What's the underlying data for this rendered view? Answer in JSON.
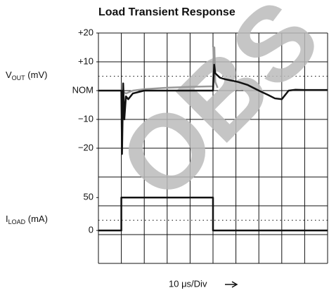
{
  "chart_data": {
    "type": "line",
    "title": "Load Transient Response",
    "watermark": "OBS",
    "y_label": [
      "V",
      "OUT",
      " (mV)"
    ],
    "y2_label": [
      "I",
      "LOAD",
      " (mA)"
    ],
    "x_label": "10 μs/Div",
    "xlim": [
      0,
      100
    ],
    "ylim": [
      -60,
      20
    ],
    "y2lim": [
      -50,
      300
    ],
    "yticks": [
      {
        "value": 20,
        "label": "+20"
      },
      {
        "value": 10,
        "label": "+10"
      },
      {
        "value": 0,
        "label": "NOM"
      },
      {
        "value": -10,
        "label": "−10"
      },
      {
        "value": -20,
        "label": "−20"
      }
    ],
    "y2ticks": [
      50,
      0
    ],
    "grid_divisions": [
      10,
      8
    ],
    "series": [
      {
        "color": "#999999",
        "x": [
          10,
          12,
          15,
          20,
          30,
          40,
          50,
          50.3,
          50.6,
          51,
          52
        ],
        "values": [
          0,
          -1,
          0,
          0.5,
          1,
          1.3,
          1.5,
          15,
          15,
          3,
          1
        ]
      },
      {
        "color": "#111111",
        "x": [
          0,
          10,
          10.3,
          10.8,
          11.3,
          12,
          13,
          15,
          20,
          30,
          40,
          50,
          50.5,
          51,
          53,
          55,
          58,
          61,
          65,
          70,
          74,
          77,
          80,
          83,
          86,
          90,
          100
        ],
        "values": [
          0,
          0,
          -22,
          2.5,
          -10,
          -2,
          -3,
          -1,
          0,
          0,
          0,
          0,
          9,
          6,
          4.5,
          4,
          3.5,
          3,
          2,
          0,
          -1.5,
          -2.7,
          -3,
          0,
          0.3,
          0.2,
          0.2
        ]
      },
      {
        "color": "#111111",
        "axis": "y2",
        "x": [
          0,
          10,
          10,
          50,
          50,
          100
        ],
        "values": [
          0,
          0,
          50,
          50,
          0,
          0
        ]
      }
    ]
  }
}
